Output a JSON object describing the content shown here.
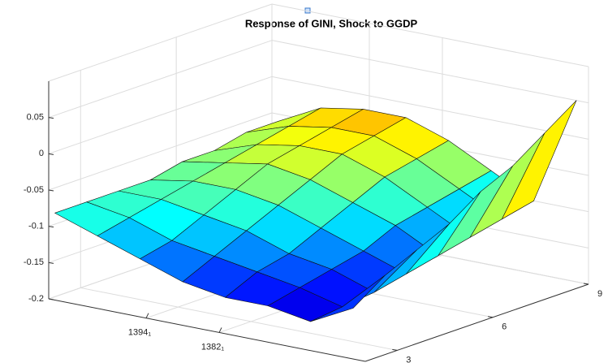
{
  "chart_data": {
    "type": "surface",
    "title": "Response of GINI, Shock to GGDP",
    "x": [
      1360,
      1367,
      1374,
      1381,
      1388,
      1395,
      1402,
      1409
    ],
    "y": [
      2,
      3,
      4,
      5,
      6,
      7,
      8,
      9
    ],
    "z": [
      [
        -0.13,
        -0.1,
        -0.08,
        -0.06,
        -0.03,
        -0.01,
        0.02,
        0.05
      ],
      [
        -0.16,
        -0.155,
        -0.15,
        -0.14,
        -0.13,
        -0.12,
        -0.11,
        -0.1
      ],
      [
        -0.15,
        -0.14,
        -0.13,
        -0.12,
        -0.1,
        -0.09,
        -0.08,
        -0.07
      ],
      [
        -0.15,
        -0.13,
        -0.12,
        -0.1,
        -0.08,
        -0.06,
        -0.05,
        -0.04
      ],
      [
        -0.14,
        -0.12,
        -0.1,
        -0.08,
        -0.06,
        -0.04,
        -0.03,
        -0.02
      ],
      [
        -0.12,
        -0.11,
        -0.09,
        -0.07,
        -0.05,
        -0.04,
        -0.03,
        -0.02
      ],
      [
        -0.1,
        -0.09,
        -0.08,
        -0.07,
        -0.06,
        -0.05,
        -0.04,
        -0.03
      ],
      [
        -0.08,
        -0.08,
        -0.08,
        -0.08,
        -0.07,
        -0.07,
        -0.06,
        -0.06
      ]
    ],
    "xlim": [
      1358,
      1410
    ],
    "ylim": [
      2,
      9
    ],
    "zlim": [
      -0.2,
      0.1
    ],
    "xticks": [
      {
        "value": 1382,
        "label": "1382₁"
      },
      {
        "value": 1394,
        "label": "1394₁"
      }
    ],
    "yticks": [
      3,
      6,
      9
    ],
    "zticks": [
      -0.2,
      -0.15,
      -0.1,
      -0.05,
      0,
      0.05
    ],
    "colormap": "jet",
    "clim": [
      -0.175,
      0.045
    ],
    "grid": true
  }
}
